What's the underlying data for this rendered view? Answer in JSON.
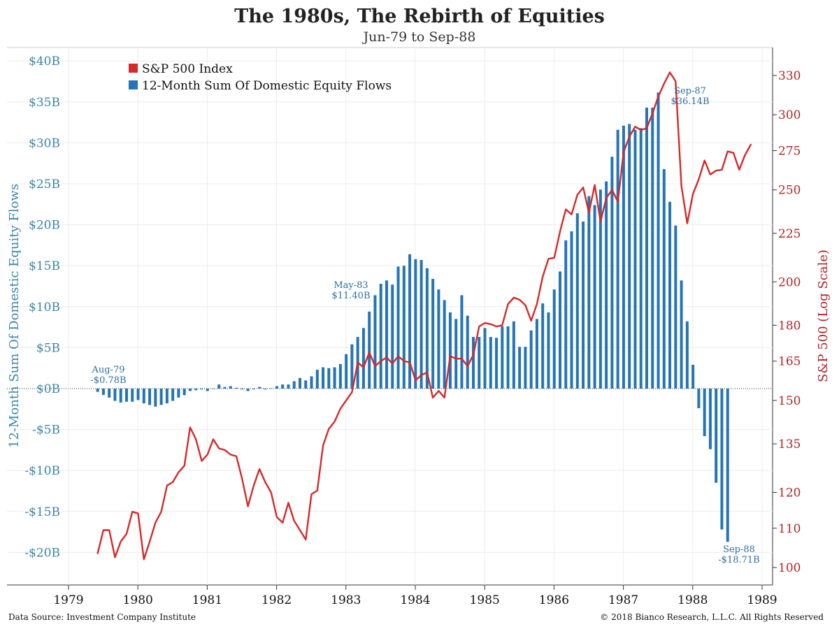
{
  "chart_data": {
    "type": "bar+line",
    "title": "The 1980s, The Rebirth of Equities",
    "subtitle": "Jun-79 to Sep-88",
    "y_left_label": "12-Month Sum Of Domestic Equity Flows",
    "y_right_label": "S&P 500 (Log Scale)",
    "y_left_range": [
      -23.5,
      41.5
    ],
    "y_left_ticks": [
      -20,
      -15,
      -10,
      -5,
      0,
      5,
      10,
      15,
      20,
      25,
      30,
      35,
      40
    ],
    "y_left_tick_labels": [
      "-$20B",
      "-$15B",
      "-$10B",
      "-$5B",
      "$0B",
      "$5B",
      "$10B",
      "$15B",
      "$20B",
      "$25B",
      "$30B",
      "$35B",
      "$40B"
    ],
    "y_right_ticks": [
      100,
      110,
      120,
      135,
      150,
      165,
      180,
      200,
      225,
      250,
      275,
      300,
      330
    ],
    "y_right_scale": "log",
    "x_range": [
      1979.0,
      1989.0
    ],
    "x_ticks": [
      1979,
      1980,
      1981,
      1982,
      1983,
      1984,
      1985,
      1986,
      1987,
      1988,
      1989
    ],
    "x_tick_labels": [
      "1979",
      "1980",
      "1981",
      "1982",
      "1983",
      "1984",
      "1985",
      "1986",
      "1987",
      "1988",
      "1989"
    ],
    "grid": true,
    "legend_position": "top-left",
    "series": [
      {
        "name": "S&P 500 Index",
        "type": "line",
        "axis": "right",
        "color": "#d42a2a",
        "x_start": 1979.42,
        "x_step": 0.0833333,
        "values": [
          103.5,
          109.5,
          109.5,
          102.5,
          106.5,
          108.5,
          114.5,
          114.0,
          102.0,
          106.5,
          111.5,
          114.5,
          122.0,
          123.0,
          126.0,
          128.0,
          140.5,
          136.5,
          129.5,
          131.5,
          136.5,
          133.5,
          133.0,
          131.5,
          131.0,
          124.0,
          116.0,
          122.0,
          127.0,
          123.0,
          120.0,
          113.0,
          111.5,
          117.0,
          112.0,
          109.5,
          107.0,
          119.5,
          120.5,
          134.5,
          140.0,
          142.5,
          147.0,
          150.0,
          153.0,
          164.5,
          162.5,
          168.5,
          163.0,
          165.0,
          166.5,
          164.0,
          167.0,
          165.0,
          164.5,
          157.5,
          159.5,
          160.5,
          151.0,
          153.5,
          151.0,
          167.0,
          166.0,
          166.0,
          163.0,
          167.5,
          179.5,
          181.0,
          180.5,
          179.5,
          180.0,
          189.5,
          192.5,
          191.5,
          189.0,
          182.0,
          189.5,
          202.5,
          211.5,
          212.0,
          226.0,
          238.5,
          235.5,
          247.0,
          251.5,
          236.5,
          253.0,
          231.5,
          245.0,
          250.0,
          243.0,
          274.0,
          284.5,
          291.5,
          289.0,
          290.5,
          301.0,
          313.5,
          323.5,
          332.5,
          325.5,
          252.5,
          230.5,
          247.5,
          256.5,
          268.5,
          259.5,
          262.0,
          262.5,
          274.5,
          273.5,
          262.5,
          272.0,
          279.0
        ]
      },
      {
        "name": "12-Month Sum Of Domestic Equity Flows",
        "type": "bar",
        "axis": "left",
        "color": "#2474b6",
        "x_start": 1979.42,
        "x_step": 0.0833333,
        "values": [
          -0.4,
          -0.78,
          -1.1,
          -1.5,
          -1.7,
          -1.6,
          -1.6,
          -1.4,
          -1.8,
          -2.0,
          -2.2,
          -2.0,
          -1.8,
          -1.5,
          -1.1,
          -0.8,
          -0.3,
          -0.2,
          -0.1,
          -0.3,
          0.0,
          0.5,
          0.2,
          0.3,
          0.1,
          -0.1,
          -0.3,
          -0.1,
          0.2,
          -0.1,
          0.0,
          0.3,
          0.5,
          0.5,
          0.9,
          1.3,
          1.0,
          1.5,
          2.3,
          2.6,
          2.5,
          2.6,
          3.0,
          4.2,
          5.4,
          6.3,
          7.4,
          9.4,
          11.4,
          12.8,
          13.2,
          12.7,
          14.9,
          15.0,
          16.4,
          15.8,
          15.7,
          14.7,
          13.4,
          12.1,
          10.8,
          9.3,
          8.5,
          11.4,
          8.9,
          6.3,
          6.3,
          7.4,
          6.3,
          6.2,
          7.6,
          7.6,
          8.2,
          5.1,
          5.1,
          7.1,
          8.5,
          10.4,
          9.3,
          12.1,
          14.3,
          18.1,
          19.2,
          21.4,
          20.4,
          23.5,
          22.4,
          24.3,
          25.3,
          28.3,
          31.6,
          32.1,
          32.3,
          31.6,
          31.8,
          34.3,
          34.3,
          36.14,
          26.8,
          22.8,
          19.9,
          13.2,
          8.2,
          2.9,
          -2.4,
          -5.8,
          -7.4,
          -11.5,
          -17.2,
          -18.71
        ]
      }
    ],
    "annotations": [
      {
        "line1": "Aug-79",
        "line2": "-$0.78B"
      },
      {
        "line1": "May-83",
        "line2": "$11.40B"
      },
      {
        "line1": "Sep-87",
        "line2": "$36.14B"
      },
      {
        "line1": "Sep-88",
        "line2": "-$18.71B"
      }
    ]
  },
  "footer": {
    "source": "Data Source: Investment Company Institute",
    "copyright": "© 2018  Bianco Research, L.L.C. All Rights Reserved"
  }
}
